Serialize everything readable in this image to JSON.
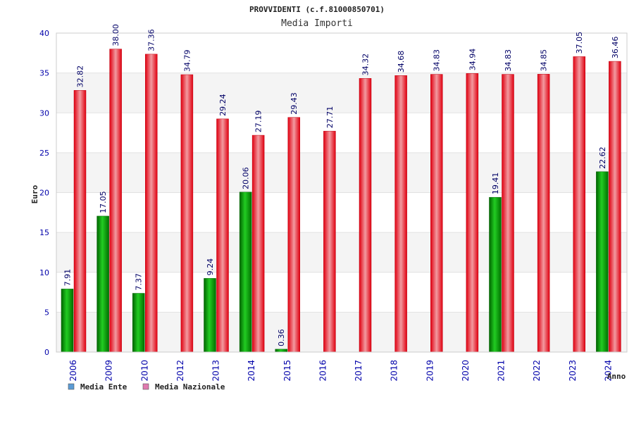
{
  "chart_data": {
    "type": "bar",
    "title": "PROVVIDENTI (c.f.81000850701)",
    "subtitle": "Media Importi",
    "xlabel": "Anno",
    "ylabel": "Euro",
    "ylim": [
      0,
      40
    ],
    "yticks": [
      "0",
      "5",
      "10",
      "15",
      "20",
      "25",
      "30",
      "35",
      "40"
    ],
    "grid": "horizontal bands",
    "legend_position": "bottom-left",
    "categories": [
      "2006",
      "2009",
      "2010",
      "2012",
      "2013",
      "2014",
      "2015",
      "2016",
      "2017",
      "2018",
      "2019",
      "2020",
      "2021",
      "2022",
      "2023",
      "2024"
    ],
    "series": [
      {
        "name": "Media Ente",
        "color": "#00a000",
        "legend_color": "#5b9bd5",
        "values": [
          7.91,
          17.05,
          7.37,
          null,
          9.24,
          20.06,
          0.36,
          null,
          null,
          null,
          null,
          null,
          19.41,
          null,
          null,
          22.62
        ],
        "labels": [
          "7.91",
          "17.05",
          "7.37",
          "",
          "9.24",
          "20.06",
          "0.36",
          "",
          "",
          "",
          "",
          "",
          "19.41",
          "",
          "",
          "22.62"
        ]
      },
      {
        "name": "Media Nazionale",
        "color": "#e8141e",
        "legend_color": "#e07ab0",
        "values": [
          32.82,
          38.0,
          37.36,
          34.79,
          29.24,
          27.19,
          29.43,
          27.71,
          34.32,
          34.68,
          34.83,
          34.94,
          34.83,
          34.85,
          37.05,
          36.46
        ],
        "labels": [
          "32.82",
          "38.00",
          "37.36",
          "34.79",
          "29.24",
          "27.19",
          "29.43",
          "27.71",
          "34.32",
          "34.68",
          "34.83",
          "34.94",
          "34.83",
          "34.85",
          "37.05",
          "36.46"
        ]
      }
    ]
  }
}
